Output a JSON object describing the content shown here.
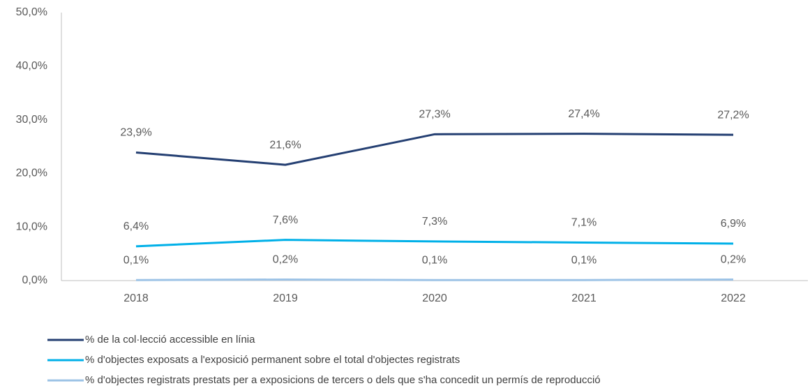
{
  "chart_data": {
    "type": "line",
    "categories": [
      "2018",
      "2019",
      "2020",
      "2021",
      "2022"
    ],
    "series": [
      {
        "name": "% de la col·lecció accessible en línia",
        "color": "#243f72",
        "values": [
          23.9,
          21.6,
          27.3,
          27.4,
          27.2
        ],
        "value_labels": [
          "23,9%",
          "21,6%",
          "27,3%",
          "27,4%",
          "27,2%"
        ]
      },
      {
        "name": "% d'objectes exposats a l'exposició permanent sobre el total d'objectes registrats",
        "color": "#00b0e8",
        "values": [
          6.4,
          7.6,
          7.3,
          7.1,
          6.9
        ],
        "value_labels": [
          "6,4%",
          "7,6%",
          "7,3%",
          "7,1%",
          "6,9%"
        ]
      },
      {
        "name": "% d'objectes registrats prestats per a exposicions de tercers o dels que s'ha concedit un permís de reproducció",
        "color": "#9dc3e6",
        "values": [
          0.1,
          0.2,
          0.1,
          0.1,
          0.2
        ],
        "value_labels": [
          "0,1%",
          "0,2%",
          "0,1%",
          "0,1%",
          "0,2%"
        ]
      }
    ],
    "ylim": [
      0,
      50
    ],
    "yticks": [
      {
        "value": 0,
        "label": "0,0%"
      },
      {
        "value": 10,
        "label": "10,0%"
      },
      {
        "value": 20,
        "label": "20,0%"
      },
      {
        "value": 30,
        "label": "30,0%"
      },
      {
        "value": 40,
        "label": "40,0%"
      },
      {
        "value": 50,
        "label": "50,0%"
      }
    ],
    "legend": "bottom"
  }
}
